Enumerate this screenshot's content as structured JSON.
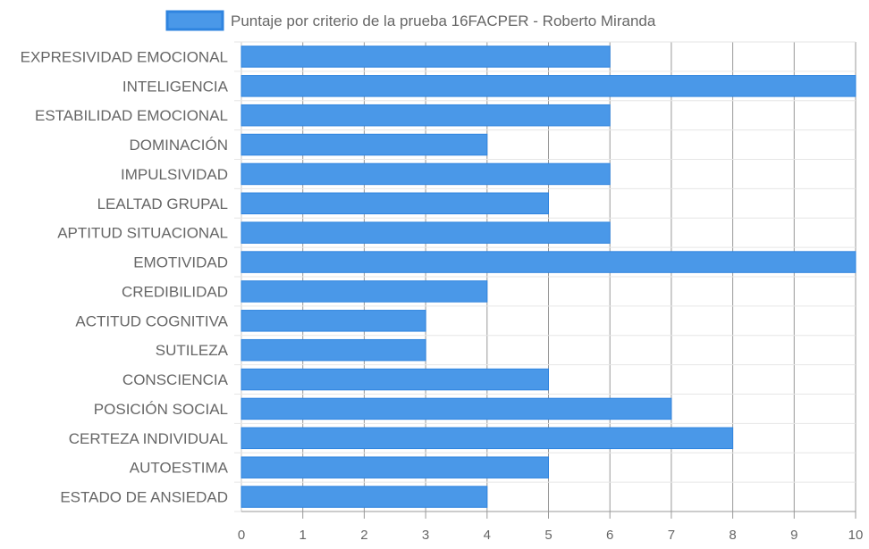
{
  "chart_data": {
    "type": "bar",
    "orientation": "horizontal",
    "series": [
      {
        "name": "Puntaje por criterio de la prueba 16FACPER - Roberto Miranda",
        "color": "#4a98e8",
        "border_color": "#2f84df",
        "values": [
          6,
          10,
          6,
          4,
          6,
          5,
          6,
          10,
          4,
          3,
          3,
          5,
          7,
          8,
          5,
          4
        ]
      }
    ],
    "categories": [
      "EXPRESIVIDAD EMOCIONAL",
      "INTELIGENCIA",
      "ESTABILIDAD EMOCIONAL",
      "DOMINACIÓN",
      "IMPULSIVIDAD",
      "LEALTAD GRUPAL",
      "APTITUD SITUACIONAL",
      "EMOTIVIDAD",
      "CREDIBILIDAD",
      "ACTITUD COGNITIVA",
      "SUTILEZA",
      "CONSCIENCIA",
      "POSICIÓN SOCIAL",
      "CERTEZA INDIVIDUAL",
      "AUTOESTIMA",
      "ESTADO DE ANSIEDAD"
    ],
    "xlim": [
      0,
      10
    ],
    "x_ticks": [
      "0",
      "1",
      "2",
      "3",
      "4",
      "5",
      "6",
      "7",
      "8",
      "9",
      "10"
    ],
    "grid": true,
    "legend_position": "top"
  }
}
